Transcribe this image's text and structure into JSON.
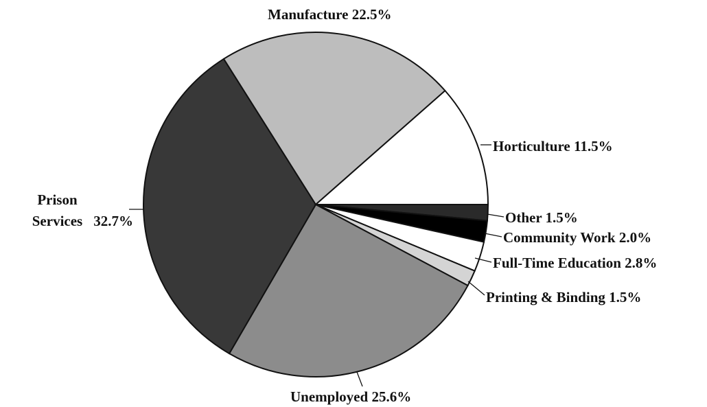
{
  "chart_data": {
    "type": "pie",
    "categories": [
      "Other",
      "Community Work",
      "Full-Time Education",
      "Printing & Binding",
      "Unemployed",
      "Prison Services",
      "Manufacture",
      "Horticulture"
    ],
    "values": [
      1.5,
      2.0,
      2.8,
      1.5,
      25.6,
      32.7,
      22.5,
      11.5
    ],
    "value_labels": [
      "1.5%",
      "2.0%",
      "2.8%",
      "1.5%",
      "25.6%",
      "32.7%",
      "22.5%",
      "11.5%"
    ],
    "colors": [
      "#2a2a2a",
      "#000000",
      "#ffffff",
      "#d4d4d4",
      "#8c8c8c",
      "#383838",
      "#bdbdbd",
      "#ffffff"
    ]
  }
}
